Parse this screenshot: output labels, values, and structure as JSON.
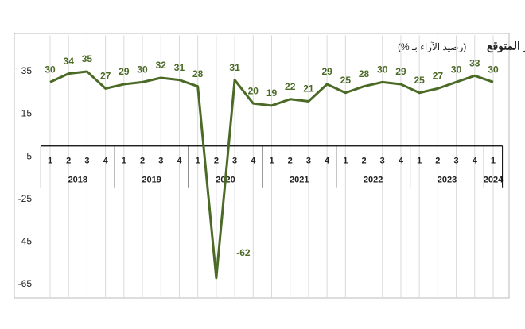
{
  "chart_data": {
    "type": "line",
    "title": "المؤشر المتوقع",
    "subtitle": "(رصيد الآراء بـ %)",
    "categories": [
      "1",
      "2",
      "3",
      "4",
      "1",
      "2",
      "3",
      "4",
      "1",
      "2",
      "3",
      "4",
      "1",
      "2",
      "3",
      "4",
      "1",
      "2",
      "3",
      "4",
      "1",
      "2",
      "3",
      "4",
      "1"
    ],
    "year_groups": [
      "2018",
      "2019",
      "2020",
      "2021",
      "2022",
      "2023",
      "2024"
    ],
    "series": [
      {
        "name": "المؤشر المتوقع",
        "color": "#4b6a26",
        "values": [
          30,
          34,
          35,
          27,
          29,
          30,
          32,
          31,
          28,
          -62,
          31,
          20,
          19,
          22,
          21,
          29,
          25,
          28,
          30,
          29,
          25,
          27,
          30,
          33,
          30
        ]
      }
    ],
    "ylim": [
      -71,
      52
    ],
    "yticks": [
      35,
      15,
      -5,
      -25,
      -45,
      -65
    ],
    "grid": true
  }
}
